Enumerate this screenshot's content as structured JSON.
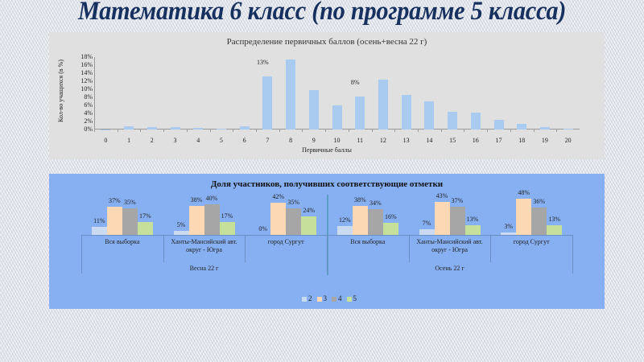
{
  "slide": {
    "title": "Математика 6 класс (по программе 5 класса)"
  },
  "chart_data": [
    {
      "type": "bar",
      "title": "Распределение первичных баллов (осень+весна 22 г)",
      "xlabel": "Первичные баллы",
      "ylabel": "Кол-во учащихся (в %)",
      "ylim": [
        0,
        18
      ],
      "yticks": [
        "0%",
        "2%",
        "4%",
        "6%",
        "8%",
        "10%",
        "12%",
        "14%",
        "16%",
        "18%"
      ],
      "categories": [
        "0",
        "1",
        "2",
        "3",
        "4",
        "5",
        "6",
        "7",
        "8",
        "9",
        "10",
        "11",
        "12",
        "13",
        "14",
        "15",
        "16",
        "17",
        "18",
        "19",
        "20"
      ],
      "values": [
        0.1,
        0.8,
        0.6,
        0.7,
        0.4,
        0.3,
        0.9,
        13.2,
        17.5,
        9.8,
        6.1,
        8.2,
        12.5,
        8.7,
        7.1,
        4.4,
        4.2,
        2.5,
        1.5,
        0.6,
        0.2
      ],
      "annotations": [
        {
          "category": "7",
          "label": "13%"
        },
        {
          "category": "11",
          "label": "8%"
        }
      ],
      "bar_color": "#a9cbef",
      "background": "#e0e0e0",
      "grid": false
    },
    {
      "type": "bar",
      "title": "Доля участников, получивших соответствующие отметки",
      "groups": [
        {
          "season": "Весна 22 г",
          "categories": [
            "Вся выборка",
            "Ханты-Мансийский авт. округ - Югра",
            "город Сургут"
          ]
        },
        {
          "season": "Осень 22 г",
          "categories": [
            "Вся выборка",
            "Ханты-Мансийский авт. округ - Югра",
            "город Сургут"
          ]
        }
      ],
      "series": [
        {
          "name": "2",
          "color": "#c9daf1",
          "values": [
            11,
            5,
            0,
            12,
            7,
            3
          ]
        },
        {
          "name": "3",
          "color": "#fdd8b4",
          "values": [
            37,
            38,
            42,
            38,
            43,
            48
          ]
        },
        {
          "name": "4",
          "color": "#a6a6a6",
          "values": [
            35,
            40,
            35,
            34,
            37,
            36
          ]
        },
        {
          "name": "5",
          "color": "#c5e09b",
          "values": [
            17,
            17,
            24,
            16,
            13,
            13
          ]
        }
      ],
      "data_labels": [
        [
          "11%",
          "37%",
          "35%",
          "17%"
        ],
        [
          "5%",
          "38%",
          "40%",
          "17%"
        ],
        [
          "0%",
          "42%",
          "35%",
          "24%"
        ],
        [
          "12%",
          "38%",
          "34%",
          "16%"
        ],
        [
          "7%",
          "43%",
          "37%",
          "13%"
        ],
        [
          "3%",
          "48%",
          "36%",
          "13%"
        ]
      ],
      "legend": [
        "2",
        "3",
        "4",
        "5"
      ],
      "legend_position": "bottom",
      "background": "#87b0f2",
      "grid": false
    }
  ],
  "bottom_chart_text": {
    "cat1": "Вся выборка",
    "cat2a": "Ханты-Мансийский авт.",
    "cat2b": "округ - Югра",
    "cat3": "город Сургут",
    "season1": "Весна 22 г",
    "season2": "Осень 22 г"
  }
}
